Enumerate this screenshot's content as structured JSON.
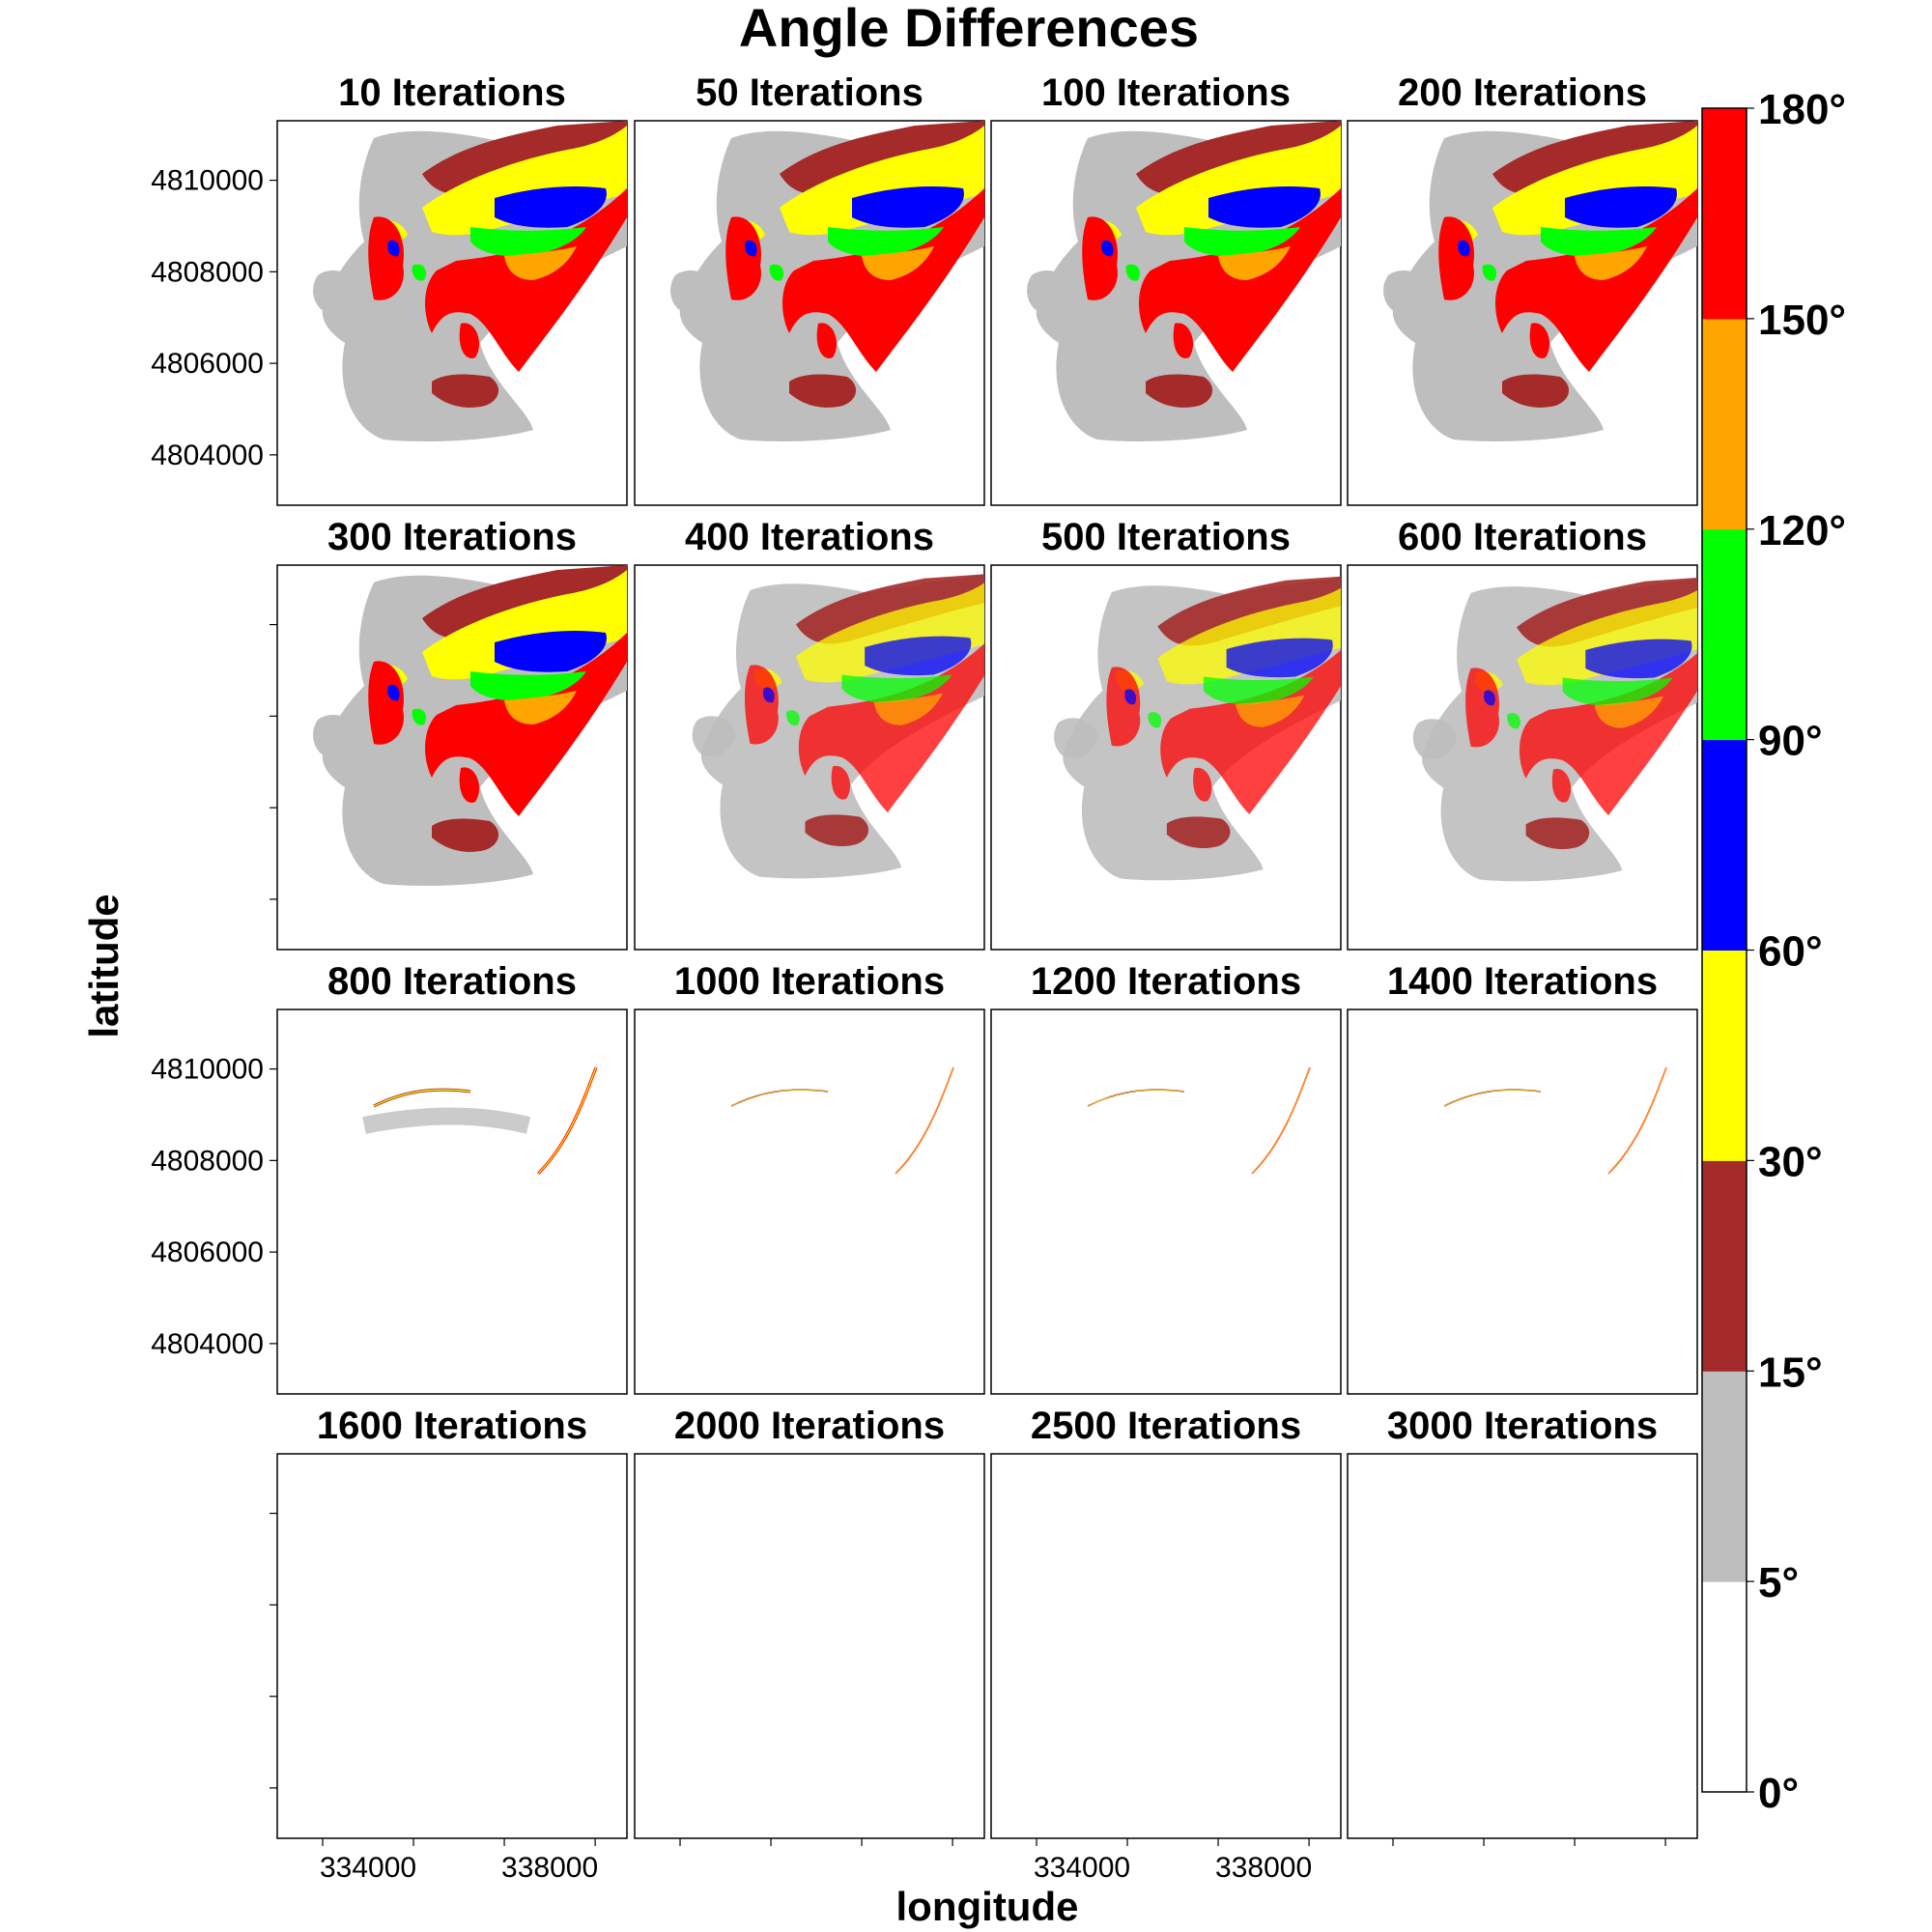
{
  "title": "Angle Differences",
  "xlabel": "longitude",
  "ylabel": "latitude",
  "colors": {
    "band_0_5": "#ffffff",
    "band_5_15": "#bebebe",
    "band_15_30": "#a52a2a",
    "band_30_60": "#ffff00",
    "band_60_90": "#0000ff",
    "band_90_120": "#00ff00",
    "band_120_150": "#ffa500",
    "band_150_180": "#ff0000"
  },
  "chart_data": {
    "type": "heatmap",
    "title": "Angle Differences",
    "xlabel": "longitude",
    "ylabel": "latitude",
    "x_ticks": [
      334000,
      338000
    ],
    "y_ticks": [
      4804000,
      4806000,
      4808000,
      4810000
    ],
    "xlim": [
      332000,
      339700
    ],
    "ylim": [
      4802900,
      4811300
    ],
    "facet_layout": {
      "rows": 4,
      "cols": 4
    },
    "panels": [
      {
        "label": "10 Iterations"
      },
      {
        "label": "50 Iterations"
      },
      {
        "label": "100 Iterations"
      },
      {
        "label": "200 Iterations"
      },
      {
        "label": "300 Iterations"
      },
      {
        "label": "400 Iterations"
      },
      {
        "label": "500 Iterations"
      },
      {
        "label": "600 Iterations"
      },
      {
        "label": "800 Iterations"
      },
      {
        "label": "1000 Iterations"
      },
      {
        "label": "1200 Iterations"
      },
      {
        "label": "1400 Iterations"
      },
      {
        "label": "1600 Iterations"
      },
      {
        "label": "2000 Iterations"
      },
      {
        "label": "2500 Iterations"
      },
      {
        "label": "3000 Iterations"
      }
    ],
    "legend": {
      "placement": "right",
      "breaks": [
        "0°",
        "5°",
        "15°",
        "30°",
        "60°",
        "90°",
        "120°",
        "150°",
        "180°"
      ],
      "colors": [
        "#ffffff",
        "#bebebe",
        "#a52a2a",
        "#ffff00",
        "#0000ff",
        "#00ff00",
        "#ffa500",
        "#ff0000"
      ]
    }
  }
}
